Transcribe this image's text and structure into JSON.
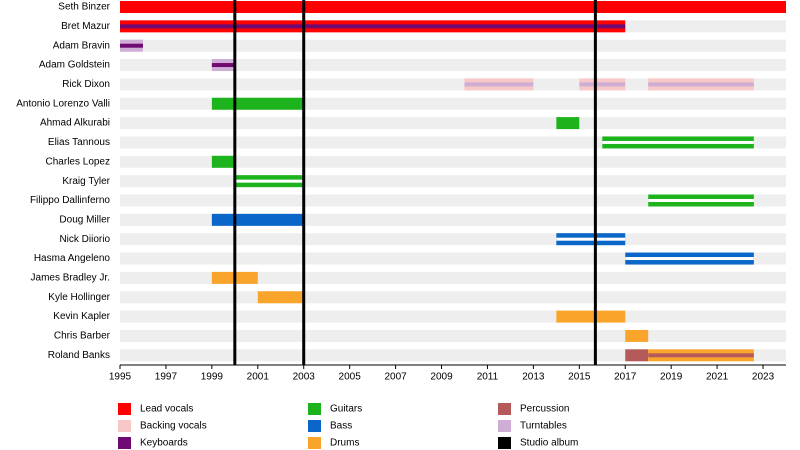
{
  "chart_data": {
    "type": "timeline",
    "xlim": [
      1995,
      2024
    ],
    "xticks": [
      1995,
      1997,
      1999,
      2001,
      2003,
      2005,
      2007,
      2009,
      2011,
      2013,
      2015,
      2017,
      2019,
      2021,
      2023
    ],
    "roles": [
      {
        "name": "Lead vocals",
        "color": "#ff0000"
      },
      {
        "name": "Backing vocals",
        "color": "#f7c8c8"
      },
      {
        "name": "Keyboards",
        "color": "#6e0a72"
      },
      {
        "name": "Guitars",
        "color": "#1db31d"
      },
      {
        "name": "Bass",
        "color": "#0a66c8"
      },
      {
        "name": "Drums",
        "color": "#f9a52c"
      },
      {
        "name": "Percussion",
        "color": "#b55a5a"
      },
      {
        "name": "Turntables",
        "color": "#cfaed6"
      }
    ],
    "studio_albums": {
      "name": "Studio album",
      "color": "#000000",
      "x": [
        2000,
        2003,
        2015.7
      ]
    },
    "members": [
      {
        "name": "Seth Binzer",
        "spans": [
          {
            "start": 1995,
            "end": 2024,
            "role": "Lead vocals"
          }
        ]
      },
      {
        "name": "Bret Mazur",
        "spans": [
          {
            "start": 1995,
            "end": 2017,
            "role": "Lead vocals",
            "stripe": "Keyboards"
          }
        ]
      },
      {
        "name": "Adam Bravin",
        "spans": [
          {
            "start": 1995,
            "end": 1996,
            "role": "Turntables",
            "stripe": "Keyboards"
          }
        ]
      },
      {
        "name": "Adam Goldstein",
        "spans": [
          {
            "start": 1999,
            "end": 2000,
            "role": "Turntables",
            "stripe": "Keyboards"
          }
        ]
      },
      {
        "name": "Rick Dixon",
        "spans": [
          {
            "start": 2010,
            "end": 2013,
            "role": "Backing vocals",
            "stripe": "Turntables"
          },
          {
            "start": 2015,
            "end": 2017,
            "role": "Backing vocals",
            "stripe": "Turntables"
          },
          {
            "start": 2018,
            "end": 2022.6,
            "role": "Backing vocals",
            "stripe": "Turntables"
          }
        ]
      },
      {
        "name": "Antonio Lorenzo Valli",
        "spans": [
          {
            "start": 1999,
            "end": 2003,
            "role": "Guitars"
          }
        ]
      },
      {
        "name": "Ahmad Alkurabi",
        "spans": [
          {
            "start": 2014,
            "end": 2015,
            "role": "Guitars"
          }
        ]
      },
      {
        "name": "Elias Tannous",
        "spans": [
          {
            "start": 2016,
            "end": 2022.6,
            "role": "Guitars",
            "split": true
          }
        ]
      },
      {
        "name": "Charles Lopez",
        "spans": [
          {
            "start": 1999,
            "end": 2000,
            "role": "Guitars"
          }
        ]
      },
      {
        "name": "Kraig Tyler",
        "spans": [
          {
            "start": 2000,
            "end": 2003,
            "role": "Guitars",
            "split": true
          }
        ]
      },
      {
        "name": "Filippo Dallinferno",
        "spans": [
          {
            "start": 2018,
            "end": 2022.6,
            "role": "Guitars",
            "split": true
          }
        ]
      },
      {
        "name": "Doug Miller",
        "spans": [
          {
            "start": 1999,
            "end": 2003,
            "role": "Bass"
          }
        ]
      },
      {
        "name": "Nick Diiorio",
        "spans": [
          {
            "start": 2014,
            "end": 2017,
            "role": "Bass",
            "split": true
          }
        ]
      },
      {
        "name": "Hasma Angeleno",
        "spans": [
          {
            "start": 2017,
            "end": 2022.6,
            "role": "Bass",
            "split": true
          }
        ]
      },
      {
        "name": "James Bradley Jr.",
        "spans": [
          {
            "start": 1999,
            "end": 2001,
            "role": "Drums"
          }
        ]
      },
      {
        "name": "Kyle Hollinger",
        "spans": [
          {
            "start": 2001,
            "end": 2003,
            "role": "Drums"
          }
        ]
      },
      {
        "name": "Kevin Kapler",
        "spans": [
          {
            "start": 2014,
            "end": 2017,
            "role": "Drums"
          }
        ]
      },
      {
        "name": "Chris Barber",
        "spans": [
          {
            "start": 2017,
            "end": 2018,
            "role": "Drums"
          }
        ]
      },
      {
        "name": "Roland Banks",
        "spans": [
          {
            "start": 2017,
            "end": 2018,
            "role": "Percussion"
          },
          {
            "start": 2018,
            "end": 2022.6,
            "role": "Drums",
            "stripe": "Percussion"
          }
        ]
      }
    ]
  }
}
